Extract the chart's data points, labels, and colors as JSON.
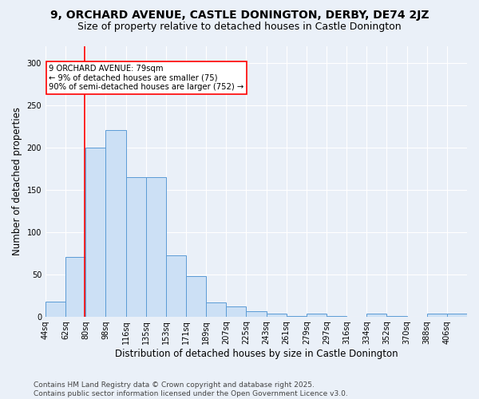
{
  "title": "9, ORCHARD AVENUE, CASTLE DONINGTON, DERBY, DE74 2JZ",
  "subtitle": "Size of property relative to detached houses in Castle Donington",
  "xlabel": "Distribution of detached houses by size in Castle Donington",
  "ylabel": "Number of detached properties",
  "bin_labels": [
    "44sq",
    "62sq",
    "80sq",
    "98sq",
    "116sq",
    "135sq",
    "153sq",
    "171sq",
    "189sq",
    "207sq",
    "225sq",
    "243sq",
    "261sq",
    "279sq",
    "297sq",
    "316sq",
    "334sq",
    "352sq",
    "370sq",
    "388sq",
    "406sq"
  ],
  "bar_heights": [
    18,
    70,
    200,
    220,
    165,
    165,
    72,
    48,
    17,
    12,
    6,
    3,
    1,
    3,
    1,
    0,
    3,
    1,
    0,
    3,
    3
  ],
  "bar_color": "#cce0f5",
  "bar_edge_color": "#5b9bd5",
  "vline_x": 79,
  "vline_color": "red",
  "annotation_text": "9 ORCHARD AVENUE: 79sqm\n← 9% of detached houses are smaller (75)\n90% of semi-detached houses are larger (752) →",
  "annotation_box_color": "white",
  "annotation_box_edge": "red",
  "ylim": [
    0,
    320
  ],
  "yticks": [
    0,
    50,
    100,
    150,
    200,
    250,
    300
  ],
  "footer_text": "Contains HM Land Registry data © Crown copyright and database right 2025.\nContains public sector information licensed under the Open Government Licence v3.0.",
  "bg_color": "#eaf0f8",
  "grid_color": "#ffffff",
  "title_fontsize": 10,
  "subtitle_fontsize": 9,
  "axis_label_fontsize": 8.5,
  "tick_fontsize": 7,
  "footer_fontsize": 6.5
}
